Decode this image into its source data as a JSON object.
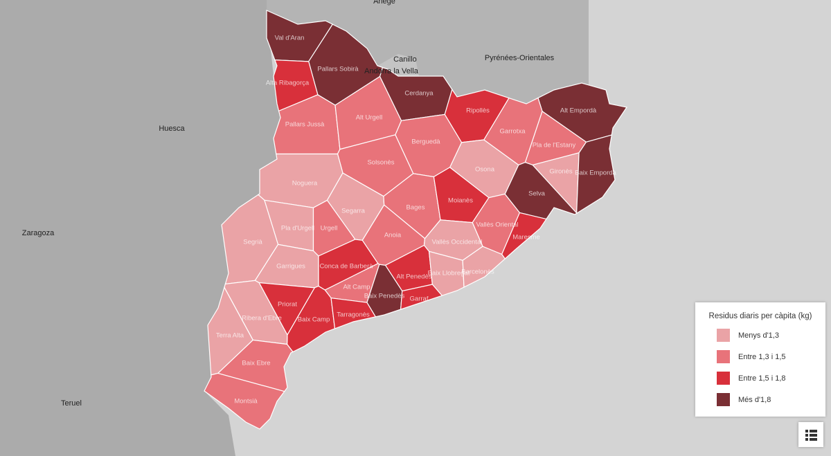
{
  "map": {
    "places": [
      "Ariège",
      "Pyrénées-Orientales",
      "Canillo",
      "Andorra la Vella",
      "Huesca",
      "Zaragoza",
      "Teruel"
    ],
    "comarques": [
      {
        "name": "Val d'Aran",
        "class": 3
      },
      {
        "name": "Pallars Sobirà",
        "class": 3
      },
      {
        "name": "Alta Ribagorça",
        "class": 2
      },
      {
        "name": "Pallars Jussà",
        "class": 1
      },
      {
        "name": "Alt Urgell",
        "class": 1
      },
      {
        "name": "Cerdanya",
        "class": 3
      },
      {
        "name": "Ripollès",
        "class": 2
      },
      {
        "name": "Alt Empordà",
        "class": 3
      },
      {
        "name": "Garrotxa",
        "class": 1
      },
      {
        "name": "Pla de l'Estany",
        "class": 1
      },
      {
        "name": "Gironès",
        "class": 0
      },
      {
        "name": "Baix Empordà",
        "class": 3
      },
      {
        "name": "Selva",
        "class": 3
      },
      {
        "name": "Osona",
        "class": 0
      },
      {
        "name": "Berguedà",
        "class": 1
      },
      {
        "name": "Solsonès",
        "class": 1
      },
      {
        "name": "Noguera",
        "class": 0
      },
      {
        "name": "Segarra",
        "class": 0
      },
      {
        "name": "Bages",
        "class": 1
      },
      {
        "name": "Moianès",
        "class": 2
      },
      {
        "name": "Segrià",
        "class": 0
      },
      {
        "name": "Pla d'Urgell",
        "class": 0
      },
      {
        "name": "Urgell",
        "class": 1
      },
      {
        "name": "Garrigues",
        "class": 0
      },
      {
        "name": "Anoia",
        "class": 1
      },
      {
        "name": "Vallès Oriental",
        "class": 1
      },
      {
        "name": "Maresme",
        "class": 2
      },
      {
        "name": "Vallès Occidental",
        "class": 0
      },
      {
        "name": "Conca de Barberà",
        "class": 2
      },
      {
        "name": "Alt Camp",
        "class": 1
      },
      {
        "name": "Alt Penedès",
        "class": 2
      },
      {
        "name": "Baix Llobregat",
        "class": 0
      },
      {
        "name": "Barcelonès",
        "class": 0
      },
      {
        "name": "Baix Penedès",
        "class": 3
      },
      {
        "name": "Garraf",
        "class": 2
      },
      {
        "name": "Priorat",
        "class": 2
      },
      {
        "name": "Baix Camp",
        "class": 2
      },
      {
        "name": "Tarragonès",
        "class": 2
      },
      {
        "name": "Ribera d'Ebre",
        "class": 0
      },
      {
        "name": "Terra Alta",
        "class": 0
      },
      {
        "name": "Baix Ebre",
        "class": 1
      },
      {
        "name": "Montsià",
        "class": 1
      }
    ]
  },
  "legend": {
    "title": "Residus diaris per càpita (kg)",
    "items": [
      {
        "label": "Menys d'1,3",
        "color": "#eaa3a6"
      },
      {
        "label": "Entre 1,3 i 1,5",
        "color": "#e8737a"
      },
      {
        "label": "Entre 1,5 i 1,8",
        "color": "#d8303b"
      },
      {
        "label": "Més d'1,8",
        "color": "#7a2f34"
      }
    ]
  }
}
